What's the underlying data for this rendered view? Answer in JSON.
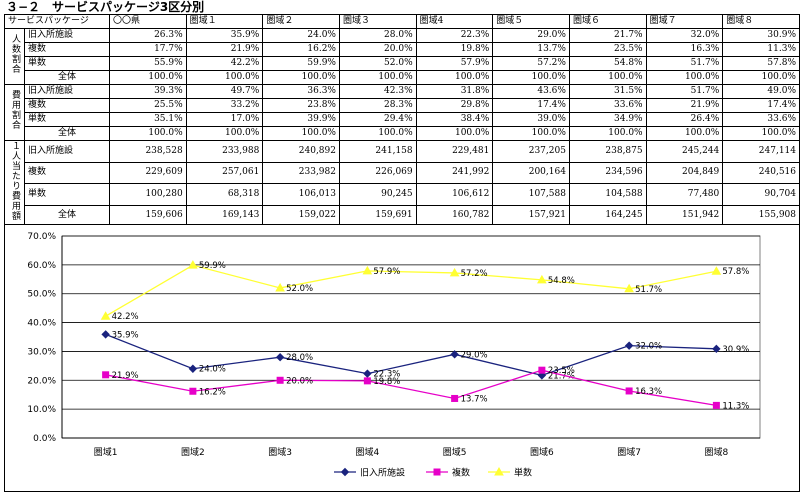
{
  "title": "３−２　サービスパッケージ3区分別",
  "table": {
    "corner": "サービスパッケージ",
    "columns": [
      "〇〇県",
      "圏域１",
      "圏域２",
      "圏域３",
      "圏域4",
      "圏域５",
      "圏域６",
      "圏域７",
      "圏域８"
    ],
    "groups": [
      {
        "label": "人数割合",
        "rows": [
          {
            "label": "旧入所施設",
            "values": [
              "26.3%",
              "35.9%",
              "24.0%",
              "28.0%",
              "22.3%",
              "29.0%",
              "21.7%",
              "32.0%",
              "30.9%"
            ]
          },
          {
            "label": "複数",
            "values": [
              "17.7%",
              "21.9%",
              "16.2%",
              "20.0%",
              "19.8%",
              "13.7%",
              "23.5%",
              "16.3%",
              "11.3%"
            ]
          },
          {
            "label": "単数",
            "values": [
              "55.9%",
              "42.2%",
              "59.9%",
              "52.0%",
              "57.9%",
              "57.2%",
              "54.8%",
              "51.7%",
              "57.8%"
            ]
          },
          {
            "label": "全体",
            "values": [
              "100.0%",
              "100.0%",
              "100.0%",
              "100.0%",
              "100.0%",
              "100.0%",
              "100.0%",
              "100.0%",
              "100.0%"
            ]
          }
        ]
      },
      {
        "label": "費用割合",
        "rows": [
          {
            "label": "旧入所施設",
            "values": [
              "39.3%",
              "49.7%",
              "36.3%",
              "42.3%",
              "31.8%",
              "43.6%",
              "31.5%",
              "51.7%",
              "49.0%"
            ]
          },
          {
            "label": "複数",
            "values": [
              "25.5%",
              "33.2%",
              "23.8%",
              "28.3%",
              "29.8%",
              "17.4%",
              "33.6%",
              "21.9%",
              "17.4%"
            ]
          },
          {
            "label": "単数",
            "values": [
              "35.1%",
              "17.0%",
              "39.9%",
              "29.4%",
              "38.4%",
              "39.0%",
              "34.9%",
              "26.4%",
              "33.6%"
            ]
          },
          {
            "label": "全体",
            "values": [
              "100.0%",
              "100.0%",
              "100.0%",
              "100.0%",
              "100.0%",
              "100.0%",
              "100.0%",
              "100.0%",
              "100.0%"
            ]
          }
        ]
      },
      {
        "label": "１人当たり費用額",
        "rows": [
          {
            "label": "旧入所施設",
            "values": [
              "238,528",
              "233,988",
              "240,892",
              "241,158",
              "229,481",
              "237,205",
              "238,875",
              "245,244",
              "247,114"
            ]
          },
          {
            "label": "複数",
            "values": [
              "229,609",
              "257,061",
              "233,982",
              "226,069",
              "241,992",
              "200,164",
              "234,596",
              "204,849",
              "240,516"
            ]
          },
          {
            "label": "単数",
            "values": [
              "100,280",
              "68,318",
              "106,013",
              "90,245",
              "106,612",
              "107,588",
              "104,588",
              "77,480",
              "90,704"
            ]
          },
          {
            "label": "全体",
            "values": [
              "159,606",
              "169,143",
              "159,022",
              "159,691",
              "160,782",
              "157,921",
              "164,245",
              "151,942",
              "155,908"
            ]
          }
        ]
      }
    ]
  },
  "chart_data": {
    "type": "line",
    "categories": [
      "圏域1",
      "圏域2",
      "圏域3",
      "圏域4",
      "圏域5",
      "圏域6",
      "圏域7",
      "圏域8"
    ],
    "ylim": [
      0,
      70
    ],
    "yticks": [
      "0.0%",
      "10.0%",
      "20.0%",
      "30.0%",
      "40.0%",
      "50.0%",
      "60.0%",
      "70.0%"
    ],
    "grid": true,
    "legend": "bottom",
    "series": [
      {
        "name": "旧入所施設",
        "color": "#1a237e",
        "marker": "diamond",
        "values": [
          35.9,
          24.0,
          28.0,
          22.3,
          29.0,
          21.7,
          32.0,
          30.9
        ],
        "labels": [
          "35.9%",
          "24.0%",
          "28.0%",
          "22.3%",
          "29.0%",
          "21.7%",
          "32.0%",
          "30.9%"
        ]
      },
      {
        "name": "複数",
        "color": "#e600c8",
        "marker": "square",
        "values": [
          21.9,
          16.2,
          20.0,
          19.8,
          13.7,
          23.5,
          16.3,
          11.3
        ],
        "labels": [
          "21.9%",
          "16.2%",
          "20.0%",
          "19.8%",
          "13.7%",
          "23.5%",
          "16.3%",
          "11.3%"
        ]
      },
      {
        "name": "単数",
        "color": "#ffff33",
        "marker": "triangle",
        "values": [
          42.2,
          59.9,
          52.0,
          57.9,
          57.2,
          54.8,
          51.7,
          57.8
        ],
        "labels": [
          "42.2%",
          "59.9%",
          "52.0%",
          "57.9%",
          "57.2%",
          "54.8%",
          "51.7%",
          "57.8%"
        ]
      }
    ]
  }
}
